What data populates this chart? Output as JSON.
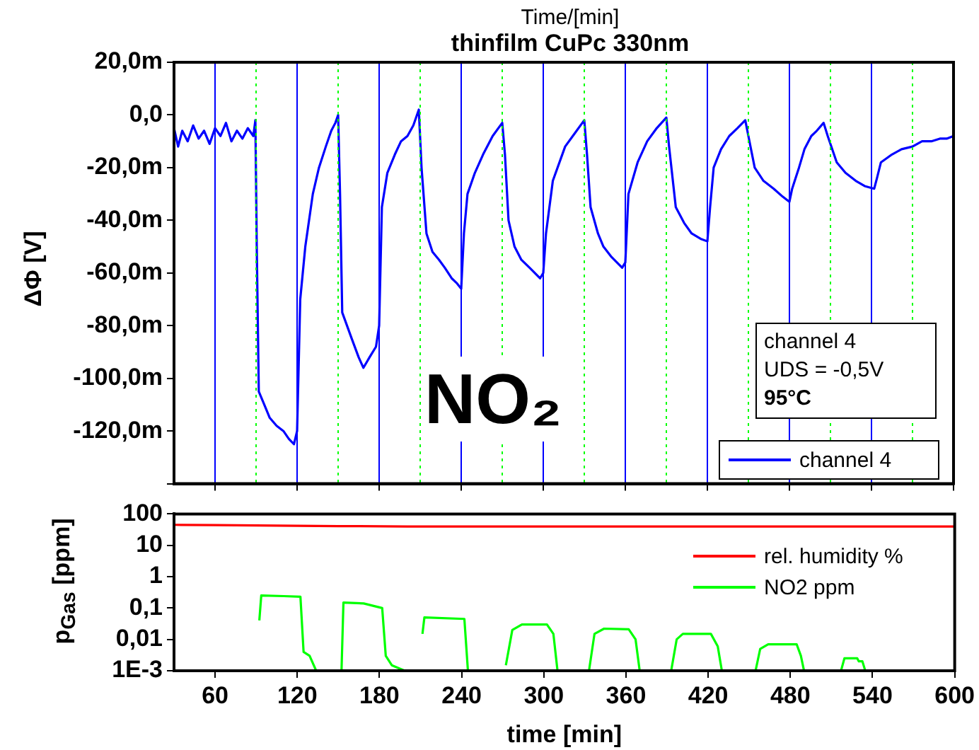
{
  "chart_data": [
    {
      "type": "line",
      "title": "thinfilm CuPc 330nm",
      "x2label": "Time/[min]",
      "ylabel": "ΔΦ [V]",
      "xlim": [
        30,
        600
      ],
      "xticks": [
        60,
        120,
        180,
        240,
        300,
        360,
        420,
        480,
        540,
        600
      ],
      "tick_labels": "y",
      "ylim": [
        -140,
        20
      ],
      "yticks": [
        {
          "value": 20,
          "label": "20,0m"
        },
        {
          "value": 0,
          "label": "0,0"
        },
        {
          "value": -20,
          "label": "-20,0m"
        },
        {
          "value": -40,
          "label": "-40,0m"
        },
        {
          "value": -60,
          "label": "-60,0m"
        },
        {
          "value": -80,
          "label": "-80,0m"
        },
        {
          "value": -100,
          "label": "-100,0m"
        },
        {
          "value": -120,
          "label": "-120,0m"
        },
        {
          "value": -140,
          "label": null
        }
      ],
      "series": [
        {
          "name": "channel 4",
          "color": "#0000ff",
          "x": [
            30,
            33,
            36,
            40,
            44,
            48,
            52,
            56,
            60,
            64,
            68,
            72,
            76,
            80,
            84,
            88,
            89.5,
            90.5,
            92,
            96,
            100,
            105,
            110,
            114,
            117.7,
            120,
            122.3,
            126,
            131.5,
            136,
            141,
            145,
            148,
            150,
            151.4,
            153,
            160,
            165,
            168.5,
            173,
            177.7,
            180,
            182,
            186,
            191.5,
            196,
            200.7,
            205,
            209,
            211,
            214.6,
            219,
            223.8,
            228,
            233,
            237,
            240,
            242,
            244.6,
            250,
            256,
            263,
            270,
            272,
            274.6,
            279,
            284,
            290,
            297.7,
            300,
            302,
            307,
            316,
            323,
            330,
            332,
            334.6,
            340,
            344,
            350,
            357.7,
            360,
            362.3,
            369,
            376,
            383,
            390,
            392,
            396.9,
            403,
            408.5,
            415,
            420,
            422,
            424.6,
            430,
            436,
            442,
            447.7,
            450,
            454.6,
            461,
            468.5,
            475,
            480,
            482,
            487,
            491,
            496,
            500,
            505,
            508,
            514.6,
            521,
            528.5,
            535,
            542,
            544,
            546.9,
            555,
            562,
            570,
            577,
            583.8,
            590,
            595,
            600
          ],
          "values": [
            -5,
            -12,
            -6,
            -10,
            -4,
            -9,
            -6,
            -11,
            -5,
            -8,
            -3,
            -10,
            -6,
            -9,
            -5,
            -8,
            -2,
            -50,
            -105,
            -110,
            -115,
            -118,
            -120,
            -123,
            -125,
            -120,
            -70,
            -50,
            -30,
            -20,
            -12,
            -6,
            -3,
            0,
            -30,
            -75,
            -85,
            -92,
            -96,
            -92,
            -88,
            -80,
            -35,
            -22,
            -15,
            -10,
            -8,
            -4,
            2,
            -20,
            -45,
            -52,
            -55,
            -58,
            -62,
            -64,
            -66,
            -45,
            -30,
            -22,
            -15,
            -8,
            -3,
            -15,
            -40,
            -50,
            -55,
            -58,
            -62,
            -60,
            -45,
            -25,
            -12,
            -7,
            -2,
            -15,
            -35,
            -45,
            -50,
            -54,
            -58,
            -56,
            -30,
            -18,
            -10,
            -5,
            -1,
            -12,
            -35,
            -41,
            -45,
            -47,
            -48,
            -35,
            -20,
            -13,
            -8,
            -5,
            -2,
            -8,
            -20,
            -25,
            -28,
            -31,
            -33,
            -28,
            -20,
            -13,
            -8,
            -6,
            -3,
            -8,
            -18,
            -22,
            -25,
            -27,
            -28,
            -24,
            -18,
            -15,
            -13,
            -12,
            -10,
            -10,
            -9,
            -9,
            -8
          ]
        }
      ],
      "legend": "bottom right",
      "ref_lines": [
        {
          "axis": "x",
          "value": 60,
          "color": "#0000ff",
          "line_style": "solid"
        },
        {
          "axis": "x",
          "value": 120,
          "color": "#0000ff",
          "line_style": "solid"
        },
        {
          "axis": "x",
          "value": 180,
          "color": "#0000ff",
          "line_style": "solid"
        },
        {
          "axis": "x",
          "value": 240,
          "color": "#0000ff",
          "line_style": "solid"
        },
        {
          "axis": "x",
          "value": 300,
          "color": "#0000ff",
          "line_style": "solid"
        },
        {
          "axis": "x",
          "value": 360,
          "color": "#0000ff",
          "line_style": "solid"
        },
        {
          "axis": "x",
          "value": 420,
          "color": "#0000ff",
          "line_style": "solid"
        },
        {
          "axis": "x",
          "value": 480,
          "color": "#0000ff",
          "line_style": "solid"
        },
        {
          "axis": "x",
          "value": 540,
          "color": "#0000ff",
          "line_style": "solid"
        },
        {
          "axis": "x",
          "value": 90,
          "color": "#00ff00",
          "line_style": "dotted"
        },
        {
          "axis": "x",
          "value": 150,
          "color": "#00ff00",
          "line_style": "dotted"
        },
        {
          "axis": "x",
          "value": 210,
          "color": "#00ff00",
          "line_style": "dotted"
        },
        {
          "axis": "x",
          "value": 270,
          "color": "#00ff00",
          "line_style": "dotted"
        },
        {
          "axis": "x",
          "value": 330,
          "color": "#00ff00",
          "line_style": "dotted"
        },
        {
          "axis": "x",
          "value": 390,
          "color": "#00ff00",
          "line_style": "dotted"
        },
        {
          "axis": "x",
          "value": 450,
          "color": "#00ff00",
          "line_style": "dotted"
        },
        {
          "axis": "x",
          "value": 510,
          "color": "#00ff00",
          "line_style": "dotted"
        },
        {
          "axis": "x",
          "value": 570,
          "color": "#00ff00",
          "line_style": "dotted"
        }
      ],
      "annotations": [
        "NO₂",
        "channel 4",
        "UDS = -0,5V",
        "95°C"
      ]
    },
    {
      "type": "line",
      "xlabel": "time [min]",
      "ylabel": "p$_{Gas}$ [ppm]",
      "log": "y",
      "xlim": [
        30,
        600
      ],
      "xticks": [
        60,
        120,
        180,
        240,
        300,
        360,
        420,
        480,
        540,
        600
      ],
      "ylim": [
        0.001,
        100
      ],
      "yticks": [
        {
          "value": 0.001,
          "label": "1E-3"
        },
        {
          "value": 0.01,
          "label": "0,01"
        },
        {
          "value": 0.1,
          "label": "0,1"
        },
        1,
        10,
        100
      ],
      "series": [
        {
          "name": "rel. humidity %",
          "color": "#ff0000",
          "x": [
            30,
            60,
            90,
            120,
            150,
            200,
            300,
            400,
            500,
            600
          ],
          "values": [
            45,
            44,
            43,
            42,
            41,
            40,
            40,
            40,
            40,
            40
          ]
        },
        {
          "name": "NO2 ppm",
          "color": "#00ff00",
          "x": [
            92.3,
            93.7,
            110,
            122.3,
            124.6,
            129,
            133.8,
            143,
            152.3,
            153.7,
            168.5,
            182,
            184.6,
            189,
            198.5,
            205,
            211.4,
            212.8,
            242,
            244.6,
            258,
            272.3,
            277,
            284,
            302.3,
            307,
            310,
            320,
            333,
            337,
            344,
            362,
            367,
            370,
            380,
            393,
            397,
            401.5,
            422,
            427,
            430,
            440,
            454.6,
            458,
            463.8,
            484.6,
            487.7,
            490,
            500,
            517,
            519.5,
            528.8,
            530,
            532.6,
            534.7
          ],
          "values": [
            0.04,
            0.25,
            0.24,
            0.23,
            0.004,
            0.003,
            0.001,
            null,
            0.001,
            0.15,
            0.14,
            0.1,
            0.003,
            0.0015,
            0.001,
            null,
            0.015,
            0.05,
            0.045,
            0.001,
            null,
            0.0015,
            0.02,
            0.03,
            0.03,
            0.015,
            0.001,
            null,
            0.001,
            0.015,
            0.022,
            0.021,
            0.01,
            0.001,
            null,
            0.001,
            0.01,
            0.015,
            0.015,
            0.006,
            0.001,
            null,
            0.001,
            0.005,
            0.007,
            0.007,
            0.003,
            0.001,
            null,
            0.001,
            0.0025,
            0.0025,
            0.002,
            0.002,
            0.001
          ]
        }
      ],
      "legend": "right"
    }
  ]
}
